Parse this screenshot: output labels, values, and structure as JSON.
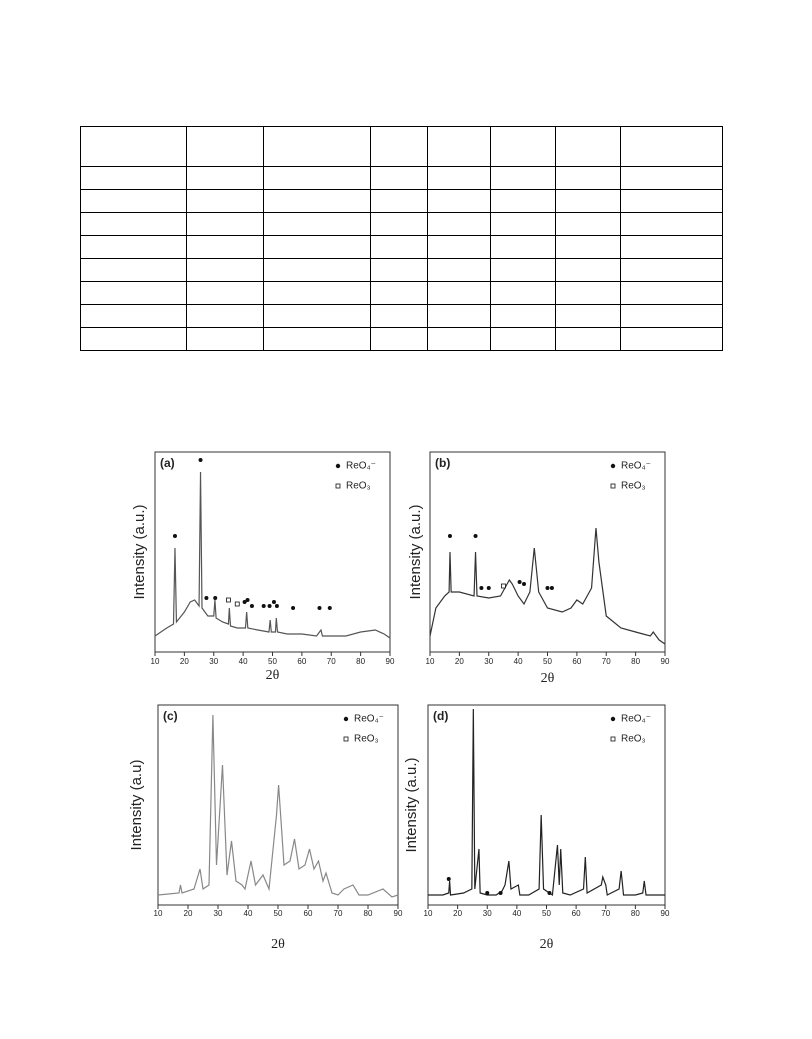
{
  "chart_data": [
    {
      "type": "line",
      "panel_label": "(a)",
      "x_label": "2θ",
      "y_label": "Intensity (a.u.)",
      "xlim": [
        10,
        90
      ],
      "xticks": [
        10,
        20,
        30,
        40,
        50,
        60,
        70,
        80,
        90
      ],
      "ylim": [
        0,
        100
      ],
      "color": "#555555",
      "x": [
        10,
        14,
        16.3,
        16.8,
        17.3,
        20,
        22,
        23.5,
        25,
        25.5,
        26,
        28,
        30,
        30.4,
        30.8,
        33,
        35,
        35.3,
        35.7,
        38,
        40.8,
        41.2,
        41.6,
        45,
        48.8,
        49.2,
        49.6,
        51,
        51.3,
        51.7,
        55,
        60,
        65,
        66.5,
        67,
        75,
        80,
        85,
        88,
        90
      ],
      "values": [
        8,
        12,
        14,
        52,
        15,
        20,
        25,
        26,
        23,
        90,
        22,
        18,
        18,
        26,
        17,
        15,
        14,
        22,
        13,
        12,
        12,
        20,
        12,
        11,
        10,
        16,
        10,
        10,
        17,
        10,
        9,
        9,
        8,
        11,
        8,
        8,
        10,
        11,
        9,
        7
      ],
      "markers": [
        {
          "name": "ReO₄⁻",
          "symbol": "dot",
          "x": [
            16.8,
            25.5,
            27.5,
            30.5,
            40.5,
            41.5,
            43,
            47,
            49,
            50.5,
            51.5,
            57,
            66,
            69.5
          ],
          "y": [
            58,
            96,
            27,
            27,
            25,
            26,
            23,
            23,
            23,
            25,
            23,
            22,
            22,
            22
          ]
        },
        {
          "name": "ReO₃",
          "symbol": "square",
          "x": [
            35,
            38
          ],
          "y": [
            26,
            24
          ]
        }
      ]
    },
    {
      "type": "line",
      "panel_label": "(b)",
      "x_label": "2θ",
      "y_label": "Intensity (a.u.)",
      "xlim": [
        10,
        90
      ],
      "xticks": [
        10,
        20,
        30,
        40,
        50,
        60,
        70,
        80,
        90
      ],
      "ylim": [
        0,
        100
      ],
      "color": "#333333",
      "x": [
        10,
        12,
        15,
        16.5,
        16.8,
        17.2,
        20,
        25,
        25.5,
        26,
        30,
        34,
        37,
        38,
        40,
        42,
        44,
        45.5,
        47,
        50,
        55,
        58,
        60,
        62,
        65,
        66.5,
        67.5,
        70,
        75,
        80,
        85,
        86,
        88,
        90
      ],
      "values": [
        8,
        22,
        28,
        30,
        50,
        30,
        30,
        28,
        50,
        28,
        27,
        28,
        36,
        34,
        28,
        24,
        30,
        52,
        30,
        22,
        20,
        22,
        26,
        24,
        32,
        62,
        45,
        18,
        12,
        10,
        8,
        10,
        6,
        4
      ],
      "markers": [
        {
          "name": "ReO₄⁻",
          "symbol": "dot",
          "x": [
            16.8,
            25.5,
            27.5,
            30,
            40.5,
            42,
            50,
            51.5
          ],
          "y": [
            58,
            58,
            32,
            32,
            35,
            34,
            32,
            32
          ]
        },
        {
          "name": "ReO₃",
          "symbol": "square",
          "x": [
            35
          ],
          "y": [
            33
          ]
        }
      ]
    },
    {
      "type": "line",
      "panel_label": "(c)",
      "x_label": "2θ",
      "y_label": "Intensity (a.u)",
      "xlim": [
        10,
        90
      ],
      "xticks": [
        10,
        20,
        30,
        40,
        50,
        60,
        70,
        80,
        90
      ],
      "ylim": [
        0,
        100
      ],
      "color": "#888888",
      "x": [
        10,
        17,
        17.5,
        18,
        22,
        24,
        25,
        27,
        28.3,
        29.5,
        31.5,
        33,
        34.5,
        36,
        38,
        39,
        41,
        42.5,
        45,
        47,
        49.5,
        50.2,
        52,
        54,
        55.5,
        57,
        59,
        60.5,
        62,
        63.5,
        65,
        66,
        68,
        70,
        72,
        75,
        77,
        80,
        85,
        88,
        90
      ],
      "values": [
        5,
        6,
        10,
        6,
        8,
        18,
        8,
        10,
        95,
        20,
        70,
        15,
        32,
        12,
        10,
        8,
        22,
        10,
        15,
        8,
        45,
        60,
        20,
        22,
        33,
        18,
        20,
        28,
        18,
        22,
        12,
        16,
        6,
        5,
        8,
        10,
        5,
        5,
        8,
        4,
        5
      ],
      "markers": [
        {
          "name": "ReO₄⁻",
          "symbol": "dot",
          "x": [],
          "y": []
        },
        {
          "name": "ReO₃",
          "symbol": "square",
          "x": [],
          "y": []
        }
      ]
    },
    {
      "type": "line",
      "panel_label": "(d)",
      "x_label": "2θ",
      "y_label": "Intensity (a.u.)",
      "xlim": [
        10,
        90
      ],
      "xticks": [
        10,
        20,
        30,
        40,
        50,
        60,
        70,
        80,
        90
      ],
      "ylim": [
        0,
        100
      ],
      "color": "#222222",
      "x": [
        10,
        15,
        17,
        17.3,
        17.6,
        22,
        24.8,
        25.3,
        25.8,
        27.2,
        27.6,
        30,
        33,
        35,
        36,
        37.3,
        38,
        40.5,
        41,
        44,
        47.5,
        48.2,
        49,
        52,
        53.7,
        54.3,
        54.8,
        55.5,
        58,
        62.5,
        63.1,
        63.7,
        68.5,
        69,
        70,
        70.5,
        74.5,
        75.2,
        76,
        80,
        82.5,
        83,
        83.6,
        88,
        90
      ],
      "values": [
        5,
        5,
        6,
        12,
        5,
        6,
        8,
        98,
        8,
        28,
        6,
        5,
        5,
        7,
        10,
        22,
        8,
        10,
        5,
        5,
        8,
        45,
        8,
        5,
        30,
        10,
        28,
        6,
        5,
        8,
        24,
        6,
        10,
        14,
        10,
        5,
        8,
        17,
        5,
        5,
        6,
        12,
        5,
        5,
        5
      ],
      "markers": [
        {
          "name": "ReO₄⁻",
          "symbol": "dot",
          "x": [
            17,
            30,
            34.5,
            51
          ],
          "y": [
            13,
            6,
            6,
            6
          ]
        },
        {
          "name": "ReO₃",
          "symbol": "square",
          "x": [],
          "y": []
        }
      ]
    }
  ]
}
